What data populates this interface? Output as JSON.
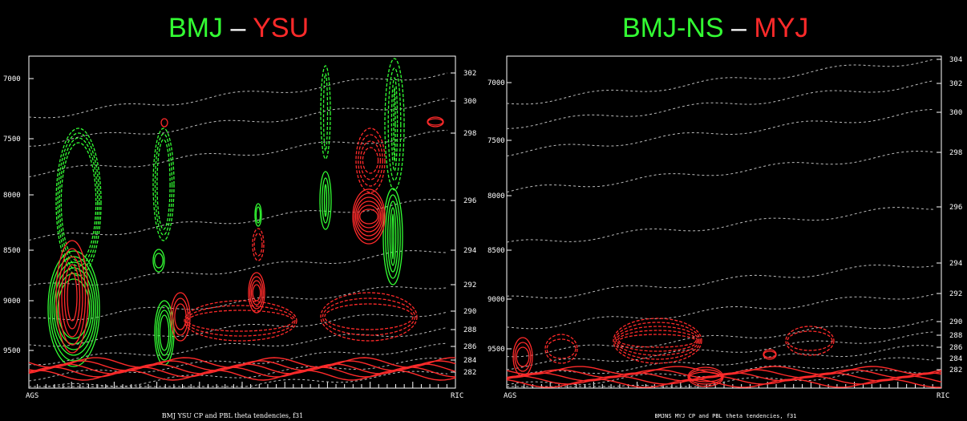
{
  "chart_data": [
    {
      "type": "contour",
      "title": {
        "left": "BMJ",
        "sep": "–",
        "right": "YSU"
      },
      "title_colors": {
        "left": "#33ff33",
        "sep": "#ffffff",
        "right": "#ff2a2a"
      },
      "caption": "BMJ YSU CP and PBL theta tendencies, f31",
      "x_endpoints": [
        "AGS",
        "RIC"
      ],
      "y_ticks": [
        "7000",
        "7500",
        "8000",
        "8500",
        "9000",
        "9500"
      ],
      "isentrope_labels": [
        "302",
        "300",
        "298",
        "296",
        "294",
        "292",
        "290",
        "288",
        "286",
        "284",
        "282"
      ],
      "series_colors": {
        "cumulus": "#33ff33",
        "pbl": "#ff2a2a",
        "theta": "#bbbbbb"
      }
    },
    {
      "type": "contour",
      "title": {
        "left": "BMJ-NS",
        "sep": "–",
        "right": "MYJ"
      },
      "title_colors": {
        "left": "#33ff33",
        "sep": "#ffffff",
        "right": "#ff2a2a"
      },
      "caption": "BMJNS MYJ CP and PBL theta tendencies, f31",
      "x_endpoints": [
        "AGS",
        "RIC"
      ],
      "y_ticks": [
        "7000",
        "7500",
        "8000",
        "8500",
        "9000",
        "9500"
      ],
      "isentrope_labels": [
        "304",
        "302",
        "300",
        "298",
        "296",
        "294",
        "292",
        "290",
        "288",
        "286",
        "284",
        "282"
      ],
      "series_colors": {
        "cumulus": "#33ff33",
        "pbl": "#ff2a2a",
        "theta": "#bbbbbb"
      }
    }
  ]
}
